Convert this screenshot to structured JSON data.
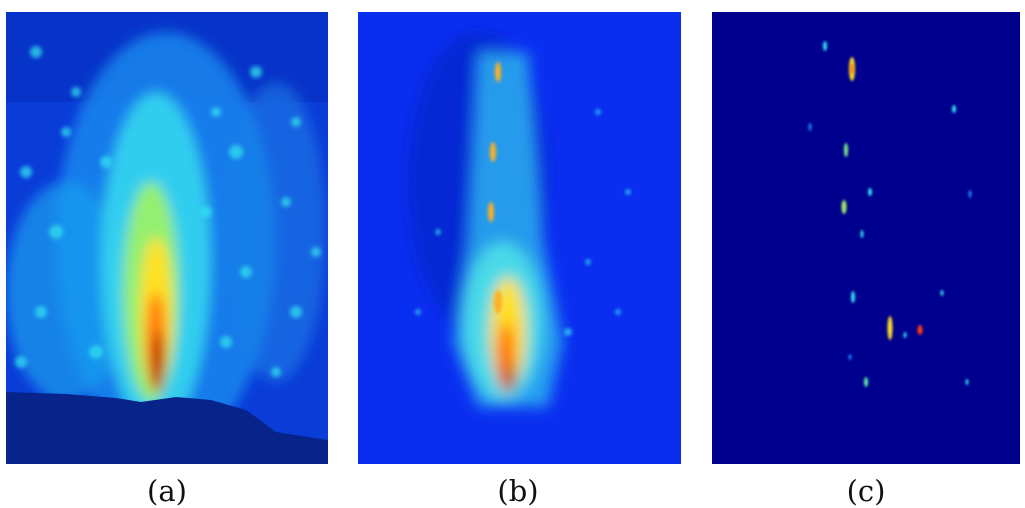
{
  "captions": {
    "a": "(a)",
    "b": "(b)",
    "c": "(c)"
  },
  "colormap": {
    "low": "#00008f",
    "mid": "#00c8ff",
    "high": "#ffd400",
    "peak": "#b00000"
  }
}
